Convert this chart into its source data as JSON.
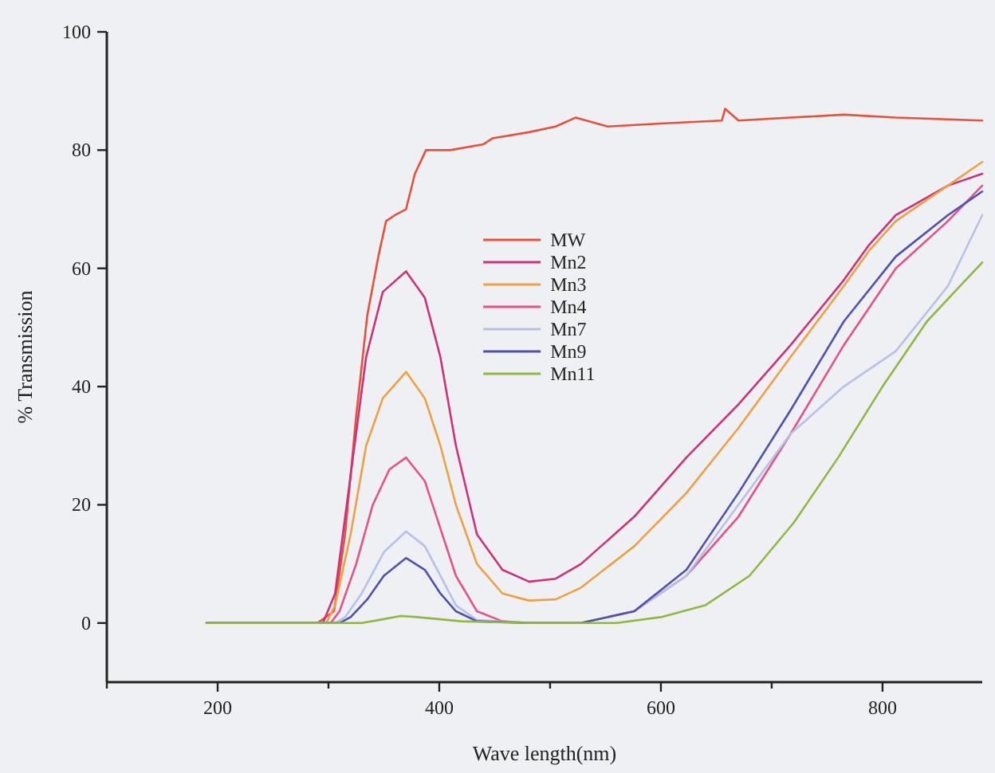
{
  "chart_data": {
    "type": "line",
    "xlabel": "Wave length(nm)",
    "ylabel": "% Transmission",
    "xlim": [
      100,
      890
    ],
    "ylim": [
      -10,
      100
    ],
    "xticks": [
      {
        "value": 100,
        "label": null
      },
      200,
      {
        "value": 300,
        "label": null
      },
      400,
      {
        "value": 500,
        "label": null
      },
      600,
      {
        "value": 700,
        "label": null
      },
      800
    ],
    "yticks": [
      0,
      20,
      40,
      60,
      80,
      100
    ],
    "grid": false,
    "legend": "center",
    "marker": "none",
    "line_style": "solid",
    "series": [
      {
        "name": "MW",
        "color": "#e8503a",
        "x": [
          190,
          290,
          305,
          315,
          325,
          335,
          345,
          352,
          360,
          370,
          378,
          388,
          410,
          440,
          448,
          480,
          505,
          523,
          552,
          600,
          655,
          658,
          670,
          717,
          765,
          812,
          890
        ],
        "values": [
          0,
          0,
          2,
          15,
          35,
          52,
          62,
          68,
          69,
          70,
          76,
          80,
          80,
          81,
          82,
          83,
          84,
          85.5,
          84,
          84.5,
          85,
          87,
          85,
          85.5,
          86,
          85.5,
          85
        ]
      },
      {
        "name": "Mn2",
        "color": "#d0307a",
        "x": [
          190,
          295,
          306,
          320,
          334,
          349,
          370,
          387,
          401,
          415,
          434,
          457,
          481,
          505,
          528,
          576,
          623,
          670,
          717,
          765,
          788,
          812,
          859,
          890
        ],
        "values": [
          0,
          0,
          5,
          25,
          45,
          56,
          59.5,
          55,
          45,
          30,
          15,
          9,
          7,
          7.5,
          10,
          18,
          28,
          37,
          47,
          58,
          64,
          69,
          74,
          76
        ]
      },
      {
        "name": "Mn3",
        "color": "#f0a040",
        "x": [
          190,
          298,
          306,
          320,
          334,
          349,
          370,
          387,
          401,
          415,
          434,
          457,
          481,
          505,
          528,
          576,
          623,
          670,
          717,
          765,
          788,
          812,
          859,
          890
        ],
        "values": [
          0,
          0,
          3,
          15,
          30,
          38,
          42.5,
          38,
          30,
          20,
          10,
          5,
          3.8,
          4,
          6,
          13,
          22,
          33,
          45,
          57,
          63,
          68,
          74,
          78
        ]
      },
      {
        "name": "Mn4",
        "color": "#e8508a",
        "x": [
          190,
          302,
          310,
          325,
          340,
          355,
          370,
          387,
          401,
          415,
          434,
          457,
          481,
          528,
          576,
          623,
          670,
          717,
          765,
          812,
          859,
          890
        ],
        "values": [
          0,
          0,
          2,
          10,
          20,
          26,
          28,
          24,
          16,
          8,
          2,
          0.3,
          0,
          0,
          2,
          8,
          18,
          32,
          47,
          60,
          68,
          74
        ]
      },
      {
        "name": "Mn7",
        "color": "#b8c0e8",
        "x": [
          190,
          306,
          315,
          330,
          350,
          370,
          387,
          401,
          415,
          434,
          481,
          528,
          576,
          623,
          670,
          717,
          765,
          812,
          859,
          890
        ],
        "values": [
          0,
          0,
          1,
          5,
          12,
          15.5,
          13,
          8,
          3,
          0.5,
          0,
          0,
          2,
          8,
          20,
          32,
          40,
          46,
          57,
          69
        ]
      },
      {
        "name": "Mn9",
        "color": "#5050b0",
        "x": [
          190,
          310,
          320,
          335,
          350,
          370,
          387,
          401,
          415,
          434,
          481,
          528,
          576,
          623,
          670,
          717,
          765,
          812,
          859,
          890
        ],
        "values": [
          0,
          0,
          1,
          4,
          8,
          11,
          9,
          5,
          2,
          0.3,
          0,
          0,
          2,
          9,
          22,
          36,
          51,
          62,
          69,
          73
        ]
      },
      {
        "name": "Mn11",
        "color": "#90b840",
        "x": [
          190,
          330,
          345,
          365,
          380,
          420,
          480,
          560,
          600,
          640,
          680,
          720,
          760,
          800,
          840,
          870,
          890
        ],
        "values": [
          0,
          0,
          0.5,
          1.2,
          1,
          0.3,
          0,
          0,
          1,
          3,
          8,
          17,
          28,
          40,
          51,
          57,
          61
        ]
      }
    ]
  }
}
